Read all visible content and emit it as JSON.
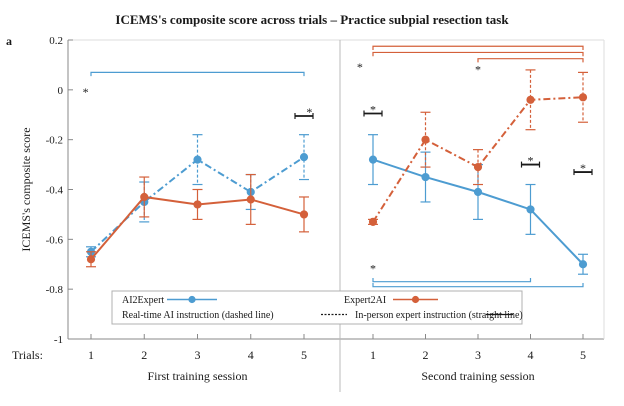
{
  "chart_data": {
    "type": "line",
    "title": "ICEMS's composite score across trials – Practice subpial resection task",
    "panel_label": "a",
    "ylabel": "ICEMS's composite score",
    "ylim": [
      -1,
      0.2
    ],
    "yticks": [
      0.2,
      0,
      -0.2,
      -0.4,
      -0.6,
      -0.8,
      -1
    ],
    "ytick_labels": [
      "0.2",
      "0",
      "-0.2",
      "-0.4",
      "-0.6",
      "-0.8",
      "-1"
    ],
    "x_prefix": "Trials:",
    "sessions": [
      {
        "label": "First training session",
        "trials": [
          "1",
          "2",
          "3",
          "4",
          "5"
        ]
      },
      {
        "label": "Second training session",
        "trials": [
          "1",
          "2",
          "3",
          "4",
          "5"
        ]
      }
    ],
    "series": [
      {
        "name": "AI2Expert",
        "color": "#4d9cd1",
        "session": 1,
        "style": "dashed",
        "x": [
          1,
          2,
          3,
          4,
          5
        ],
        "y": [
          -0.65,
          -0.45,
          -0.28,
          -0.41,
          -0.27
        ],
        "err": [
          0.02,
          0.08,
          0.1,
          0.07,
          0.09
        ]
      },
      {
        "name": "Expert2AI",
        "color": "#d4603a",
        "session": 1,
        "style": "solid",
        "x": [
          1,
          2,
          3,
          4,
          5
        ],
        "y": [
          -0.68,
          -0.43,
          -0.46,
          -0.44,
          -0.5
        ],
        "err": [
          0.03,
          0.08,
          0.06,
          0.1,
          0.07
        ]
      },
      {
        "name": "AI2Expert",
        "color": "#4d9cd1",
        "session": 2,
        "style": "solid",
        "x": [
          1,
          2,
          3,
          4,
          5
        ],
        "y": [
          -0.28,
          -0.35,
          -0.41,
          -0.48,
          -0.7
        ],
        "err": [
          0.1,
          0.1,
          0.11,
          0.1,
          0.04
        ]
      },
      {
        "name": "Expert2AI",
        "color": "#d4603a",
        "session": 2,
        "style": "dashed",
        "x": [
          1,
          2,
          3,
          4,
          5
        ],
        "y": [
          -0.53,
          -0.2,
          -0.31,
          -0.04,
          -0.03
        ],
        "err": [
          0.01,
          0.11,
          0.07,
          0.12,
          0.1
        ]
      }
    ],
    "significance": [
      {
        "label": "*",
        "color": "#4d9cd1",
        "session": 1,
        "x1": 1,
        "x2": 5,
        "y": 0.07,
        "drop": 0.015,
        "star_x": 0.9,
        "star_y": 0.0
      },
      {
        "label": "*",
        "color": "#1a1a1a",
        "session": 1,
        "x1": 5,
        "x2": 5,
        "y": -0.105,
        "star_x": 5.1,
        "star_y": -0.08
      },
      {
        "label": "*",
        "color": "#1a1a1a",
        "session": 2,
        "x1": 1,
        "x2": 1,
        "y": -0.095,
        "star_x": 1.0,
        "star_y": -0.07
      },
      {
        "label": "*",
        "color": "#1a1a1a",
        "session": 2,
        "x1": 4,
        "x2": 4,
        "y": -0.3,
        "star_x": 4.0,
        "star_y": -0.275
      },
      {
        "label": "*",
        "color": "#1a1a1a",
        "session": 2,
        "x1": 5,
        "x2": 5,
        "y": -0.33,
        "star_x": 5.0,
        "star_y": -0.305
      },
      {
        "label": "*",
        "color": "#d4603a",
        "session": 2,
        "x1": 1,
        "x2": 5,
        "y": 0.175,
        "drop": 0.015,
        "star_x": 0.75,
        "star_y": 0.1
      },
      {
        "label": "*",
        "color": "#d4603a",
        "session": 2,
        "x1": 1,
        "x2": 5,
        "y": 0.15,
        "drop": 0.015,
        "star_x": 0.0,
        "star_y": 0.0
      },
      {
        "label": "*",
        "color": "#d4603a",
        "session": 2,
        "x1": 3,
        "x2": 5,
        "y": 0.125,
        "drop": 0.015,
        "star_x": 3.0,
        "star_y": 0.09
      },
      {
        "label": "*",
        "color": "#4d9cd1",
        "session": 2,
        "x1": 1,
        "x2": 4,
        "y": -0.77,
        "drop": -0.015,
        "star_x": 1.0,
        "star_y": -0.71
      },
      {
        "label": "*",
        "color": "#4d9cd1",
        "session": 2,
        "x1": 1,
        "x2": 5,
        "y": -0.79,
        "drop": -0.015,
        "star_x": 0.0,
        "star_y": 0.0
      }
    ],
    "legend": {
      "placement": "bottom",
      "entries": [
        {
          "label": "AI2Expert",
          "kind": "marker",
          "color": "#4d9cd1"
        },
        {
          "label": "Expert2AI",
          "kind": "marker",
          "color": "#d4603a"
        },
        {
          "label": "Real-time AI instruction (dashed line)",
          "kind": "dashed",
          "color": "#1a1a1a"
        },
        {
          "label": "In-person expert instruction (straight line)",
          "kind": "solid",
          "color": "#1a1a1a"
        }
      ]
    },
    "grid": false
  }
}
